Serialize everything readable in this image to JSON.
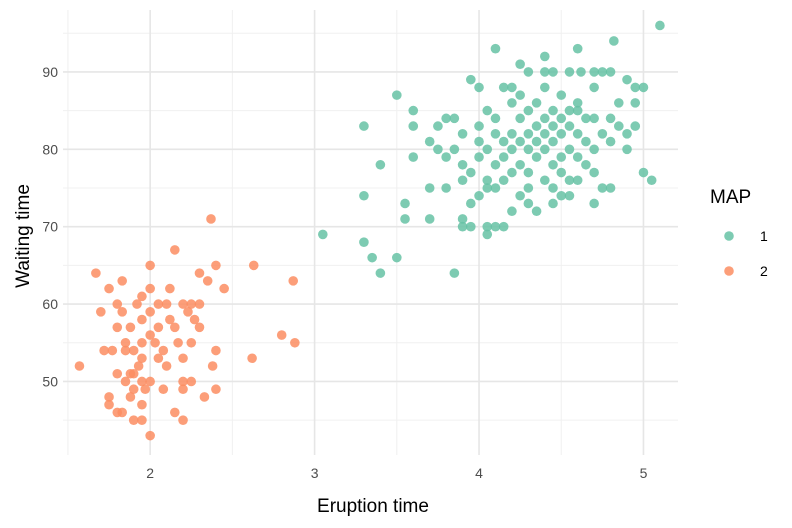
{
  "chart_data": {
    "type": "scatter",
    "xlabel": "Eruption time",
    "ylabel": "Waiting time",
    "xlim": [
      1.47,
      5.21
    ],
    "ylim": [
      40.5,
      98.0
    ],
    "x_ticks": [
      2,
      3,
      4,
      5
    ],
    "y_ticks": [
      50,
      60,
      70,
      80,
      90
    ],
    "grid": true,
    "legend": {
      "title": "MAP",
      "position": "right"
    },
    "series": [
      {
        "name": "1",
        "color": "#66c2a5",
        "points": [
          [
            5.1,
            96
          ],
          [
            4.82,
            94
          ],
          [
            4.1,
            93
          ],
          [
            4.6,
            93
          ],
          [
            4.4,
            92
          ],
          [
            4.25,
            91
          ],
          [
            4.15,
            88
          ],
          [
            4.75,
            90
          ],
          [
            4.7,
            90
          ],
          [
            4.4,
            90
          ],
          [
            4.45,
            90
          ],
          [
            4.55,
            90
          ],
          [
            4.62,
            90
          ],
          [
            4.8,
            90
          ],
          [
            4.3,
            90
          ],
          [
            3.95,
            89
          ],
          [
            4.0,
            88
          ],
          [
            4.7,
            88
          ],
          [
            4.9,
            89
          ],
          [
            4.95,
            88
          ],
          [
            5.0,
            88
          ],
          [
            4.2,
            88
          ],
          [
            4.4,
            88
          ],
          [
            3.5,
            87
          ],
          [
            4.5,
            87
          ],
          [
            4.25,
            87
          ],
          [
            4.95,
            86
          ],
          [
            4.85,
            86
          ],
          [
            4.6,
            86
          ],
          [
            4.2,
            86
          ],
          [
            4.35,
            86
          ],
          [
            4.05,
            85
          ],
          [
            3.6,
            85
          ],
          [
            4.45,
            85
          ],
          [
            4.55,
            85
          ],
          [
            4.6,
            85
          ],
          [
            4.3,
            85
          ],
          [
            3.8,
            84
          ],
          [
            3.85,
            84
          ],
          [
            4.1,
            84
          ],
          [
            4.5,
            84
          ],
          [
            4.65,
            84
          ],
          [
            4.7,
            84
          ],
          [
            4.8,
            84
          ],
          [
            4.25,
            84
          ],
          [
            4.4,
            84
          ],
          [
            3.3,
            83
          ],
          [
            3.6,
            83
          ],
          [
            3.75,
            83
          ],
          [
            4.0,
            83
          ],
          [
            4.35,
            83
          ],
          [
            4.45,
            83
          ],
          [
            4.55,
            83
          ],
          [
            4.85,
            83
          ],
          [
            4.95,
            83
          ],
          [
            3.9,
            82
          ],
          [
            4.1,
            82
          ],
          [
            4.2,
            82
          ],
          [
            4.3,
            82
          ],
          [
            4.4,
            82
          ],
          [
            4.5,
            82
          ],
          [
            4.6,
            82
          ],
          [
            4.75,
            82
          ],
          [
            4.9,
            82
          ],
          [
            4.0,
            81
          ],
          [
            4.15,
            81
          ],
          [
            4.25,
            81
          ],
          [
            4.35,
            81
          ],
          [
            4.45,
            81
          ],
          [
            4.65,
            81
          ],
          [
            4.8,
            81
          ],
          [
            3.7,
            81
          ],
          [
            4.05,
            80
          ],
          [
            4.2,
            80
          ],
          [
            4.3,
            80
          ],
          [
            4.4,
            80
          ],
          [
            4.55,
            80
          ],
          [
            4.7,
            80
          ],
          [
            4.9,
            80
          ],
          [
            3.75,
            80
          ],
          [
            3.85,
            80
          ],
          [
            4.0,
            79
          ],
          [
            4.15,
            79
          ],
          [
            4.35,
            79
          ],
          [
            4.5,
            79
          ],
          [
            4.6,
            79
          ],
          [
            3.6,
            79
          ],
          [
            3.8,
            79
          ],
          [
            4.25,
            78
          ],
          [
            4.45,
            78
          ],
          [
            4.65,
            78
          ],
          [
            3.4,
            78
          ],
          [
            3.9,
            78
          ],
          [
            4.1,
            78
          ],
          [
            4.3,
            77
          ],
          [
            4.5,
            77
          ],
          [
            4.7,
            77
          ],
          [
            5.0,
            77
          ],
          [
            3.95,
            77
          ],
          [
            4.2,
            77
          ],
          [
            4.05,
            76
          ],
          [
            4.15,
            76
          ],
          [
            4.4,
            76
          ],
          [
            4.55,
            76
          ],
          [
            3.9,
            76
          ],
          [
            5.05,
            76
          ],
          [
            4.6,
            76
          ],
          [
            3.7,
            75
          ],
          [
            3.8,
            75
          ],
          [
            4.1,
            75
          ],
          [
            4.3,
            75
          ],
          [
            4.45,
            75
          ],
          [
            4.75,
            75
          ],
          [
            4.8,
            75
          ],
          [
            4.05,
            75
          ],
          [
            3.3,
            74
          ],
          [
            4.0,
            74
          ],
          [
            4.25,
            74
          ],
          [
            4.5,
            74
          ],
          [
            4.55,
            74
          ],
          [
            3.55,
            73
          ],
          [
            4.3,
            73
          ],
          [
            4.45,
            73
          ],
          [
            4.7,
            73
          ],
          [
            3.95,
            73
          ],
          [
            4.2,
            72
          ],
          [
            4.35,
            72
          ],
          [
            3.9,
            71
          ],
          [
            3.55,
            71
          ],
          [
            3.7,
            71
          ],
          [
            3.95,
            70
          ],
          [
            4.05,
            70
          ],
          [
            4.1,
            70
          ],
          [
            4.15,
            70
          ],
          [
            3.9,
            70
          ],
          [
            3.05,
            69
          ],
          [
            4.05,
            69
          ],
          [
            3.3,
            68
          ],
          [
            3.35,
            66
          ],
          [
            3.5,
            66
          ],
          [
            3.4,
            64
          ],
          [
            3.85,
            64
          ]
        ]
      },
      {
        "name": "2",
        "color": "#fc8d62",
        "points": [
          [
            2.37,
            71
          ],
          [
            2.15,
            67
          ],
          [
            2.0,
            65
          ],
          [
            2.3,
            64
          ],
          [
            1.67,
            64
          ],
          [
            2.4,
            65
          ],
          [
            2.63,
            65
          ],
          [
            2.35,
            63
          ],
          [
            1.83,
            63
          ],
          [
            2.87,
            63
          ],
          [
            2.12,
            62
          ],
          [
            2.0,
            62
          ],
          [
            1.75,
            62
          ],
          [
            1.95,
            61
          ],
          [
            2.45,
            62
          ],
          [
            2.05,
            60
          ],
          [
            2.25,
            60
          ],
          [
            2.3,
            60
          ],
          [
            2.2,
            60
          ],
          [
            1.8,
            60
          ],
          [
            2.1,
            60
          ],
          [
            2.0,
            59
          ],
          [
            1.7,
            59
          ],
          [
            1.83,
            59
          ],
          [
            1.95,
            58
          ],
          [
            2.23,
            59
          ],
          [
            2.05,
            57
          ],
          [
            1.88,
            57
          ],
          [
            2.15,
            57
          ],
          [
            1.8,
            57
          ],
          [
            2.3,
            57
          ],
          [
            2.8,
            56
          ],
          [
            2.88,
            55
          ],
          [
            2.0,
            56
          ],
          [
            1.95,
            55
          ],
          [
            2.17,
            55
          ],
          [
            1.85,
            55
          ],
          [
            2.03,
            55
          ],
          [
            2.25,
            55
          ],
          [
            2.08,
            54
          ],
          [
            1.72,
            54
          ],
          [
            1.77,
            54
          ],
          [
            1.85,
            54
          ],
          [
            1.9,
            54
          ],
          [
            2.4,
            54
          ],
          [
            1.95,
            53
          ],
          [
            2.05,
            53
          ],
          [
            2.2,
            53
          ],
          [
            2.62,
            53
          ],
          [
            2.38,
            52
          ],
          [
            1.57,
            52
          ],
          [
            1.93,
            52
          ],
          [
            2.1,
            52
          ],
          [
            1.8,
            51
          ],
          [
            1.9,
            51
          ],
          [
            2.2,
            50
          ],
          [
            1.85,
            50
          ],
          [
            1.95,
            50
          ],
          [
            2.0,
            50
          ],
          [
            2.25,
            50
          ],
          [
            1.9,
            49
          ],
          [
            1.97,
            49
          ],
          [
            2.08,
            49
          ],
          [
            2.2,
            49
          ],
          [
            2.4,
            49
          ],
          [
            1.75,
            48
          ],
          [
            1.88,
            48
          ],
          [
            2.33,
            48
          ],
          [
            1.95,
            47
          ],
          [
            1.75,
            47
          ],
          [
            2.15,
            46
          ],
          [
            1.8,
            46
          ],
          [
            1.83,
            46
          ],
          [
            1.95,
            45
          ],
          [
            2.2,
            45
          ],
          [
            1.9,
            45
          ],
          [
            2.0,
            43
          ],
          [
            1.88,
            51
          ],
          [
            2.12,
            58
          ],
          [
            2.27,
            58
          ],
          [
            1.92,
            60
          ]
        ]
      }
    ]
  }
}
